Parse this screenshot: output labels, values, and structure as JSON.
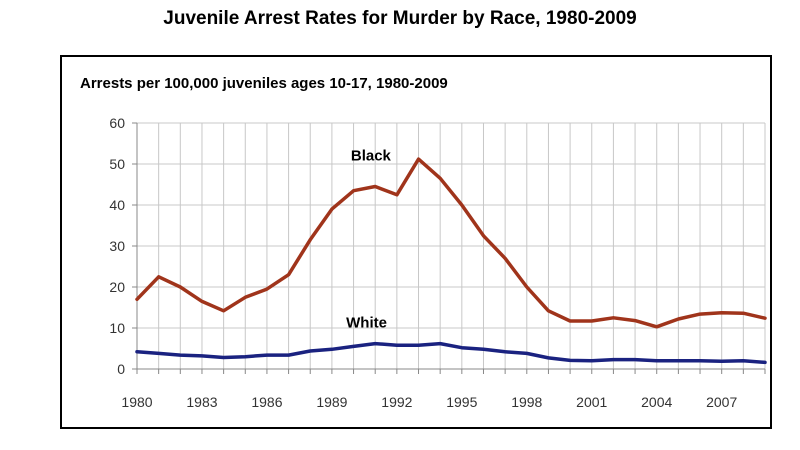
{
  "title": "Juvenile Arrest Rates for Murder by Race, 1980-2009",
  "subtitle": "Arrests per 100,000 juveniles ages 10-17, 1980-2009",
  "chart_data": {
    "type": "line",
    "title": "Juvenile Arrest Rates for Murder by Race, 1980-2009",
    "subtitle": "Arrests per 100,000 juveniles ages 10-17, 1980-2009",
    "xlabel": "",
    "ylabel": "",
    "x": [
      1980,
      1981,
      1982,
      1983,
      1984,
      1985,
      1986,
      1987,
      1988,
      1989,
      1990,
      1991,
      1992,
      1993,
      1994,
      1995,
      1996,
      1997,
      1998,
      1999,
      2000,
      2001,
      2002,
      2003,
      2004,
      2005,
      2006,
      2007,
      2008,
      2009
    ],
    "xlim": [
      1980,
      2009
    ],
    "ylim": [
      0,
      60
    ],
    "xticks": [
      "1980",
      "1983",
      "1986",
      "1989",
      "1992",
      "1995",
      "1998",
      "2001",
      "2004",
      "2007"
    ],
    "yticks": [
      "0",
      "10",
      "20",
      "30",
      "40",
      "50",
      "60"
    ],
    "grid": true,
    "legend": "inline labels",
    "series": [
      {
        "name": "Black",
        "color": "#A0341B",
        "values": [
          17,
          22.5,
          20,
          16.5,
          14.2,
          17.5,
          19.5,
          23,
          31.5,
          39,
          43.5,
          44.5,
          42.5,
          51.2,
          46.5,
          40,
          32.5,
          27,
          20,
          14.2,
          11.7,
          11.7,
          12.5,
          11.8,
          10.3,
          12.2,
          13.4,
          13.7,
          13.6,
          12.4
        ]
      },
      {
        "name": "White",
        "color": "#1A2280",
        "values": [
          4.2,
          3.8,
          3.4,
          3.2,
          2.8,
          3.0,
          3.4,
          3.4,
          4.4,
          4.8,
          5.5,
          6.2,
          5.8,
          5.8,
          6.2,
          5.2,
          4.8,
          4.2,
          3.8,
          2.7,
          2.1,
          2.0,
          2.3,
          2.3,
          2.0,
          2.0,
          2.0,
          1.9,
          2.0,
          1.6
        ]
      }
    ]
  }
}
